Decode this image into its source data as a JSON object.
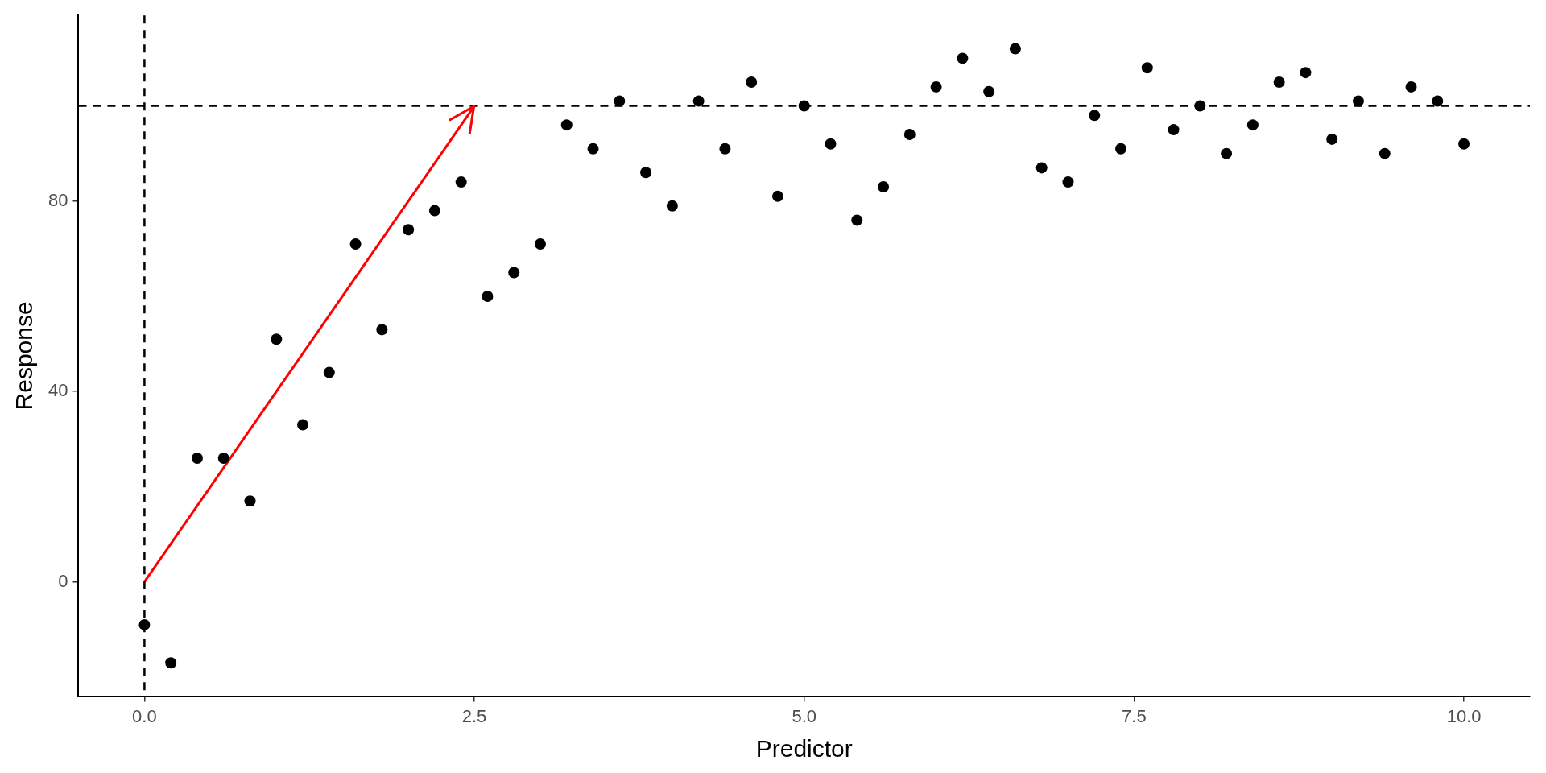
{
  "chart_data": {
    "type": "scatter",
    "xlabel": "Predictor",
    "ylabel": "Response",
    "series": [
      {
        "color": "#000000",
        "marker": "circle",
        "x": [
          0,
          0.2,
          0.4,
          0.6,
          0.8,
          1,
          1.2,
          1.4,
          1.6,
          1.8,
          2,
          2.2,
          2.4,
          2.6,
          2.8,
          3,
          3.2,
          3.4,
          3.6,
          3.8,
          4,
          4.2,
          4.4,
          4.6,
          4.8,
          5,
          5.2,
          5.4,
          5.6,
          5.8,
          6,
          6.2,
          6.4,
          6.6,
          6.8,
          7,
          7.2,
          7.4,
          7.6,
          7.8,
          8,
          8.2,
          8.4,
          8.6,
          8.8,
          9,
          9.2,
          9.4,
          9.6,
          9.8,
          10
        ],
        "values": [
          -9,
          -17,
          26,
          26,
          17,
          51,
          33,
          44,
          71,
          53,
          74,
          78,
          84,
          60,
          65,
          71,
          96,
          91,
          101,
          86,
          79,
          101,
          91,
          105,
          81,
          100,
          92,
          76,
          83,
          94,
          104,
          110,
          103,
          112,
          87,
          84,
          98,
          91,
          108,
          95,
          100,
          90,
          96,
          105,
          107,
          93,
          101,
          90,
          104,
          101,
          92
        ]
      },
      {
        "type": "line",
        "color": "#ff0000",
        "marker": "none",
        "x": [
          0,
          2.5
        ],
        "values": [
          0,
          100
        ]
      }
    ],
    "xlim": [
      -0.5,
      10.5
    ],
    "xticks": [
      {
        "value": 0,
        "label": "0.0"
      },
      {
        "value": 2.5,
        "label": "2.5"
      },
      {
        "value": 5,
        "label": "5.0"
      },
      {
        "value": 7.5,
        "label": "7.5"
      },
      {
        "value": 10,
        "label": "10.0"
      }
    ],
    "ylim": [
      -24,
      119
    ],
    "yticks": [
      0,
      40,
      80
    ],
    "ref_lines": [
      {
        "axis": "x",
        "value": 0,
        "color": "#000000",
        "line_style": "dashed"
      },
      {
        "axis": "y",
        "value": 100,
        "color": "#000000",
        "line_style": "dashed"
      }
    ],
    "grid": false,
    "legend": false
  }
}
